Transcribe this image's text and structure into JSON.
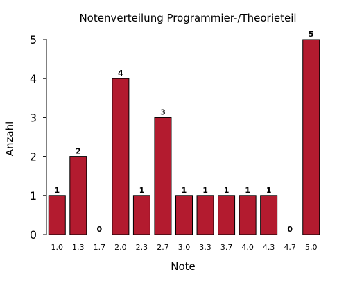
{
  "chart_data": {
    "type": "bar",
    "title": "Notenverteilung Programmier-/Theorieteil",
    "xlabel": "Note",
    "ylabel": "Anzahl",
    "categories": [
      "1.0",
      "1.3",
      "1.7",
      "2.0",
      "2.3",
      "2.7",
      "3.0",
      "3.3",
      "3.7",
      "4.0",
      "4.3",
      "4.7",
      "5.0"
    ],
    "values": [
      1,
      2,
      0,
      4,
      1,
      3,
      1,
      1,
      1,
      1,
      1,
      0,
      5
    ],
    "data_labels": [
      "1",
      "2",
      "0",
      "4",
      "1",
      "3",
      "1",
      "1",
      "1",
      "1",
      "1",
      "0",
      "5"
    ],
    "ylim": [
      0,
      5
    ],
    "yticks": [
      0,
      1,
      2,
      3,
      4,
      5
    ],
    "ytick_labels": [
      "0",
      "1",
      "2",
      "3",
      "4",
      "5"
    ],
    "grid": false,
    "legend": "none",
    "colors": {
      "bar_fill": "#b31b2f",
      "bar_stroke": "#000000",
      "axis": "#000000",
      "text": "#000000"
    }
  }
}
